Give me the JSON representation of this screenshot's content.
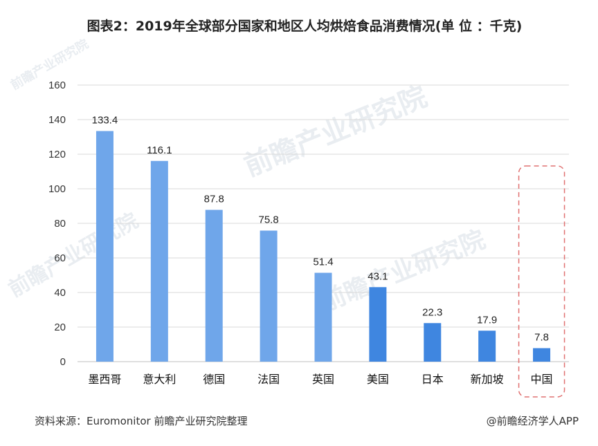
{
  "title": "图表2：2019年全球部分国家和地区人均烘焙食品消费情况(单 位 ：千克)",
  "watermark_text": "前瞻产业研究院",
  "source": "资料来源：Euromonitor 前瞻产业研究院整理",
  "credit": "@前瞻经济学人APP",
  "colors": {
    "bar": "#6fa6ea",
    "bar_highlight": "#3f86e0",
    "grid": "#d9d9d9",
    "highlight_box": "#e07070"
  },
  "chart_data": {
    "type": "bar",
    "categories": [
      "墨西哥",
      "意大利",
      "德国",
      "法国",
      "英国",
      "美国",
      "日本",
      "新加坡",
      "中国"
    ],
    "values": [
      133.4,
      116.1,
      87.8,
      75.8,
      51.4,
      43.1,
      22.3,
      17.9,
      7.8
    ],
    "value_labels": [
      "133.4",
      "116.1",
      "87.8",
      "75.8",
      "51.4",
      "43.1",
      "22.3",
      "17.9",
      "7.8"
    ],
    "ylim": [
      0,
      160
    ],
    "yticks": [
      "0",
      "20",
      "40",
      "60",
      "80",
      "100",
      "120",
      "140",
      "160"
    ],
    "grid": true,
    "highlighted_category": "中国",
    "xlabel": "",
    "ylabel": ""
  }
}
